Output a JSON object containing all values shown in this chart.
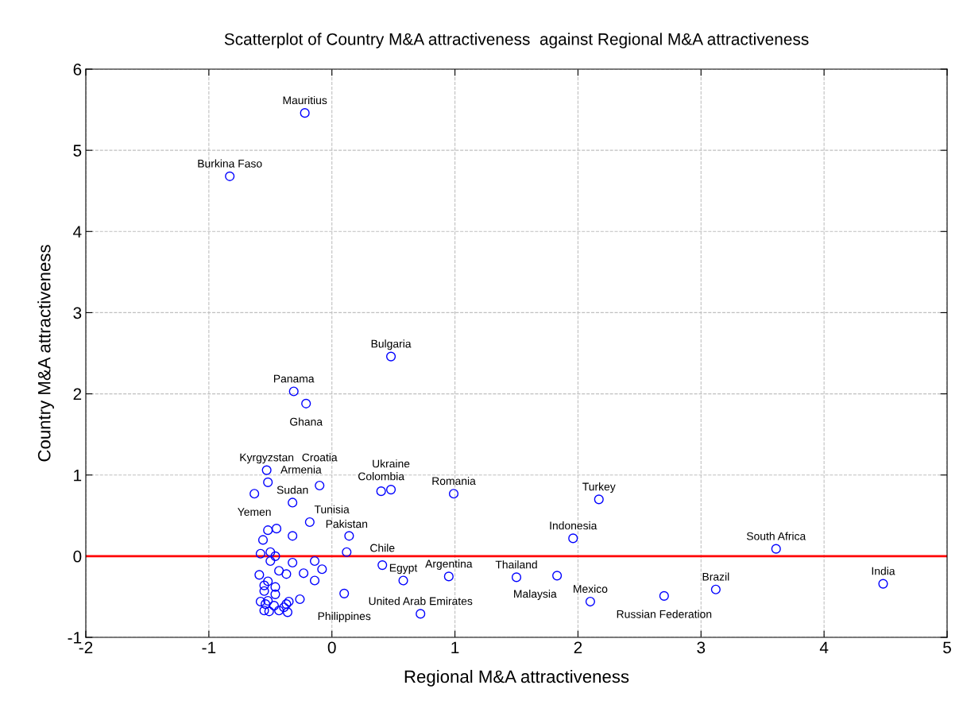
{
  "chart_data": {
    "type": "scatter",
    "title": "Scatterplot of Country M&A attractiveness  against Regional M&A attractiveness",
    "xlabel": "Regional M&A attractiveness",
    "ylabel": "Country M&A attractiveness",
    "xlim": [
      -2,
      5
    ],
    "xticks": [
      -2,
      -1,
      0,
      1,
      2,
      3,
      4,
      5
    ],
    "ylim": [
      -1,
      6
    ],
    "yticks": [
      -1,
      0,
      1,
      2,
      3,
      4,
      5,
      6
    ],
    "grid": true,
    "marker": "circle",
    "ref_lines": [
      {
        "axis": "y",
        "value": 0,
        "color": "#ff0000"
      }
    ],
    "series": [
      {
        "color": "#0000ff",
        "x": [
          -0.22,
          -0.83,
          0.48,
          -0.31,
          -0.21,
          -0.53,
          -0.52,
          -0.63,
          -0.1,
          -0.32,
          -0.18,
          0.4,
          0.48,
          0.99,
          2.17,
          1.96,
          3.61,
          4.48,
          3.12,
          2.7,
          2.1,
          1.5,
          1.83,
          0.95,
          0.58,
          0.41,
          0.72,
          0.12,
          0.14,
          0.1,
          -0.45,
          -0.52,
          -0.32,
          -0.56,
          -0.58,
          -0.5,
          -0.46,
          -0.5,
          -0.32,
          -0.14,
          -0.08,
          -0.59,
          -0.43,
          -0.37,
          -0.23,
          -0.14,
          -0.52,
          -0.55,
          -0.46,
          -0.55,
          -0.46,
          -0.26,
          -0.58,
          -0.52,
          -0.35,
          -0.37,
          -0.54,
          -0.47,
          -0.55,
          -0.51,
          -0.43,
          -0.36,
          -0.39
        ],
        "values": [
          5.46,
          4.68,
          2.46,
          2.03,
          1.88,
          1.06,
          0.91,
          0.77,
          0.87,
          0.66,
          0.42,
          0.8,
          0.82,
          0.77,
          0.7,
          0.22,
          0.09,
          -0.34,
          -0.41,
          -0.49,
          -0.56,
          -0.26,
          -0.24,
          -0.25,
          -0.3,
          -0.11,
          -0.71,
          0.05,
          0.25,
          -0.46,
          0.34,
          0.32,
          0.25,
          0.2,
          0.03,
          0.05,
          0.0,
          -0.06,
          -0.08,
          -0.06,
          -0.16,
          -0.23,
          -0.18,
          -0.22,
          -0.21,
          -0.3,
          -0.31,
          -0.36,
          -0.38,
          -0.43,
          -0.47,
          -0.53,
          -0.56,
          -0.55,
          -0.56,
          -0.59,
          -0.59,
          -0.61,
          -0.67,
          -0.68,
          -0.67,
          -0.69,
          -0.63
        ]
      }
    ],
    "annotations": [
      {
        "text": "Mauritius",
        "x": -0.22,
        "y": 5.46
      },
      {
        "text": "Burkina Faso",
        "x": -0.83,
        "y": 4.68
      },
      {
        "text": "Bulgaria",
        "x": 0.48,
        "y": 2.46
      },
      {
        "text": "Panama",
        "x": -0.31,
        "y": 2.03
      },
      {
        "text": "Ghana",
        "x": -0.21,
        "y": 1.88
      },
      {
        "text": "Kyrgyzstan",
        "x": -0.53,
        "y": 1.06
      },
      {
        "text": "Armenia",
        "x": -0.52,
        "y": 0.91
      },
      {
        "text": "Yemen",
        "x": -0.63,
        "y": 0.77
      },
      {
        "text": "Croatia",
        "x": -0.1,
        "y": 0.87
      },
      {
        "text": "Sudan",
        "x": -0.32,
        "y": 0.66
      },
      {
        "text": "Tunisia",
        "x": -0.18,
        "y": 0.42
      },
      {
        "text": "Colombia",
        "x": 0.4,
        "y": 0.8
      },
      {
        "text": "Ukraine",
        "x": 0.48,
        "y": 0.82
      },
      {
        "text": "Romania",
        "x": 0.99,
        "y": 0.77
      },
      {
        "text": "Turkey",
        "x": 2.17,
        "y": 0.7
      },
      {
        "text": "Indonesia",
        "x": 1.96,
        "y": 0.22
      },
      {
        "text": "South Africa",
        "x": 3.61,
        "y": 0.09
      },
      {
        "text": "India",
        "x": 4.48,
        "y": -0.34
      },
      {
        "text": "Brazil",
        "x": 3.12,
        "y": -0.41
      },
      {
        "text": "Russian Federation",
        "x": 2.7,
        "y": -0.49
      },
      {
        "text": "Mexico",
        "x": 2.1,
        "y": -0.56
      },
      {
        "text": "Thailand",
        "x": 1.5,
        "y": -0.26
      },
      {
        "text": "Malaysia",
        "x": 1.83,
        "y": -0.24
      },
      {
        "text": "Argentina",
        "x": 0.95,
        "y": -0.25
      },
      {
        "text": "Egypt",
        "x": 0.58,
        "y": -0.3
      },
      {
        "text": "Chile",
        "x": 0.41,
        "y": -0.11
      },
      {
        "text": "United Arab Emirates",
        "x": 0.72,
        "y": -0.71
      },
      {
        "text": "Pakistan",
        "x": 0.12,
        "y": 0.05
      },
      {
        "text": "Philippines",
        "x": 0.1,
        "y": -0.46
      }
    ]
  }
}
